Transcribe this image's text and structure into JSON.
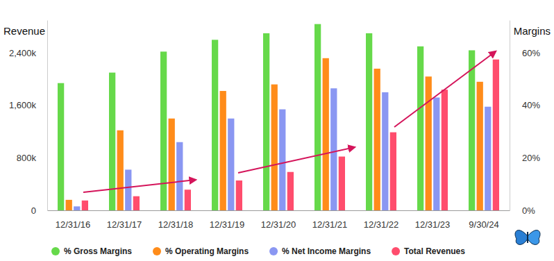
{
  "chart_data": {
    "type": "bar",
    "categories": [
      "12/31/16",
      "12/31/17",
      "12/31/18",
      "12/31/19",
      "12/31/20",
      "12/31/21",
      "12/31/22",
      "12/31/23",
      "9/30/24"
    ],
    "series": [
      {
        "name": "% Gross Margins",
        "color": "#66d94a",
        "axis": "y2",
        "values": [
          48.5,
          52.5,
          60.5,
          65,
          67.5,
          71,
          67.5,
          62.5,
          61
        ]
      },
      {
        "name": "% Operating Margins",
        "color": "#ff8c1a",
        "axis": "y2",
        "values": [
          4,
          30.5,
          35,
          45.5,
          48,
          58,
          54,
          51,
          49
        ]
      },
      {
        "name": "% Net Income Margins",
        "color": "#8a97f2",
        "axis": "y2",
        "values": [
          1.5,
          15.5,
          26,
          35,
          38.5,
          46.5,
          45,
          43,
          39.5
        ]
      },
      {
        "name": "Total Revenues",
        "color": "#ff4d6d",
        "values": [
          150000,
          215000,
          315000,
          455000,
          585000,
          820000,
          1190000,
          1840000,
          2300000
        ]
      }
    ],
    "y_label": "Revenue",
    "y2_label": "Margins",
    "ylim": [
      0,
      2900000
    ],
    "yticks": [
      0,
      {
        "value": 800000,
        "label": "800k"
      },
      {
        "value": 1600000,
        "label": "1,600k"
      },
      {
        "value": 2400000,
        "label": "2,400k"
      }
    ],
    "y2lim": [
      0,
      72.5
    ],
    "y2ticks": [
      {
        "value": 0,
        "label": "0%"
      },
      {
        "value": 20,
        "label": "20%"
      },
      {
        "value": 40,
        "label": "40%"
      },
      {
        "value": 60,
        "label": "60%"
      }
    ],
    "grid": false,
    "legend": "bottom"
  }
}
